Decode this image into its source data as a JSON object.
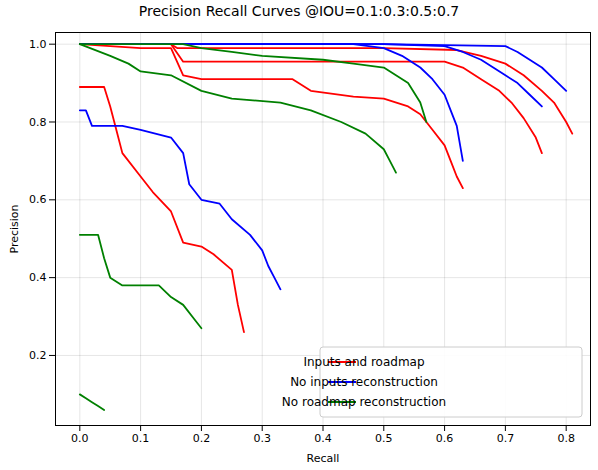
{
  "chart_data": {
    "type": "line",
    "title": "Precision Recall Curves @IOU=0.1:0.3:0.5:0.7",
    "x_label": "Recall",
    "y_label": "Precision",
    "xlim": [
      -0.04,
      0.84
    ],
    "ylim": [
      0.02,
      1.03
    ],
    "xticks": [
      {
        "value": 0,
        "label": "0.0"
      },
      0.1,
      0.2,
      0.3,
      0.4,
      0.5,
      0.6,
      0.7,
      0.8
    ],
    "yticks": [
      0.2,
      0.4,
      0.6,
      0.8,
      {
        "value": 1,
        "label": "1.0"
      }
    ],
    "grid": true,
    "legend": "lower right",
    "series": [
      {
        "name": "Inputs and roadmap",
        "color": "#ff0000",
        "curves": [
          {
            "x": [
              0,
              0.15,
              0.16,
              0.3,
              0.5,
              0.62,
              0.66,
              0.7,
              0.73,
              0.76,
              0.78,
              0.8,
              0.81
            ],
            "values": [
              1,
              1,
              0.99,
              0.99,
              0.99,
              0.985,
              0.97,
              0.95,
              0.92,
              0.88,
              0.85,
              0.8,
              0.77
            ]
          },
          {
            "x": [
              0,
              0.15,
              0.17,
              0.4,
              0.6,
              0.63,
              0.66,
              0.69,
              0.71,
              0.73,
              0.75,
              0.76
            ],
            "values": [
              1,
              1,
              0.955,
              0.955,
              0.955,
              0.94,
              0.91,
              0.88,
              0.85,
              0.81,
              0.76,
              0.72
            ]
          },
          {
            "x": [
              0,
              0.1,
              0.15,
              0.17,
              0.2,
              0.35,
              0.38,
              0.45,
              0.5,
              0.54,
              0.56,
              0.58,
              0.6,
              0.61,
              0.62,
              0.63
            ],
            "values": [
              1,
              0.99,
              0.99,
              0.92,
              0.91,
              0.91,
              0.88,
              0.865,
              0.86,
              0.84,
              0.82,
              0.78,
              0.74,
              0.7,
              0.66,
              0.63
            ]
          },
          {
            "x": [
              0,
              0.04,
              0.05,
              0.06,
              0.07,
              0.1,
              0.12,
              0.15,
              0.17,
              0.2,
              0.22,
              0.25,
              0.26,
              0.27
            ],
            "values": [
              0.89,
              0.89,
              0.84,
              0.78,
              0.72,
              0.66,
              0.62,
              0.57,
              0.49,
              0.48,
              0.46,
              0.42,
              0.33,
              0.26
            ]
          }
        ]
      },
      {
        "name": "No inputs reconstruction",
        "color": "#0000ff",
        "curves": [
          {
            "x": [
              0,
              0.5,
              0.7,
              0.72,
              0.74,
              0.76,
              0.78,
              0.8
            ],
            "values": [
              1,
              1,
              0.995,
              0.98,
              0.96,
              0.94,
              0.91,
              0.88
            ]
          },
          {
            "x": [
              0,
              0.5,
              0.6,
              0.63,
              0.66,
              0.68,
              0.7,
              0.72,
              0.74,
              0.76
            ],
            "values": [
              1,
              1,
              0.995,
              0.98,
              0.96,
              0.94,
              0.92,
              0.9,
              0.87,
              0.84
            ]
          },
          {
            "x": [
              0,
              0.45,
              0.5,
              0.53,
              0.56,
              0.58,
              0.6,
              0.61,
              0.62,
              0.63
            ],
            "values": [
              1,
              1,
              0.99,
              0.97,
              0.94,
              0.91,
              0.87,
              0.83,
              0.79,
              0.7
            ]
          },
          {
            "x": [
              0,
              0.01,
              0.02,
              0.07,
              0.1,
              0.15,
              0.17,
              0.18,
              0.2,
              0.23,
              0.25,
              0.28,
              0.3,
              0.31,
              0.32,
              0.33
            ],
            "values": [
              0.83,
              0.83,
              0.79,
              0.79,
              0.78,
              0.76,
              0.72,
              0.64,
              0.6,
              0.59,
              0.55,
              0.51,
              0.47,
              0.43,
              0.4,
              0.37
            ]
          }
        ]
      },
      {
        "name": "No roadmap reconstruction",
        "color": "#008000",
        "curves": [
          {
            "x": [
              0,
              0.17,
              0.2,
              0.25,
              0.3,
              0.4,
              0.45,
              0.5,
              0.52,
              0.54,
              0.56,
              0.57
            ],
            "values": [
              1,
              1,
              0.99,
              0.98,
              0.97,
              0.96,
              0.95,
              0.94,
              0.92,
              0.9,
              0.85,
              0.8
            ]
          },
          {
            "x": [
              0,
              0.05,
              0.08,
              0.1,
              0.15,
              0.2,
              0.25,
              0.33,
              0.38,
              0.43,
              0.47,
              0.5,
              0.51,
              0.52
            ],
            "values": [
              1,
              0.97,
              0.95,
              0.93,
              0.92,
              0.88,
              0.86,
              0.85,
              0.83,
              0.8,
              0.77,
              0.73,
              0.7,
              0.67
            ]
          },
          {
            "x": [
              0,
              0.03,
              0.04,
              0.05,
              0.07,
              0.13,
              0.15,
              0.17,
              0.19,
              0.2
            ],
            "values": [
              0.51,
              0.51,
              0.45,
              0.4,
              0.38,
              0.38,
              0.35,
              0.33,
              0.29,
              0.27
            ]
          },
          {
            "x": [
              0,
              0.01,
              0.02,
              0.03,
              0.04
            ],
            "values": [
              0.1,
              0.09,
              0.08,
              0.07,
              0.06
            ]
          }
        ]
      }
    ]
  }
}
